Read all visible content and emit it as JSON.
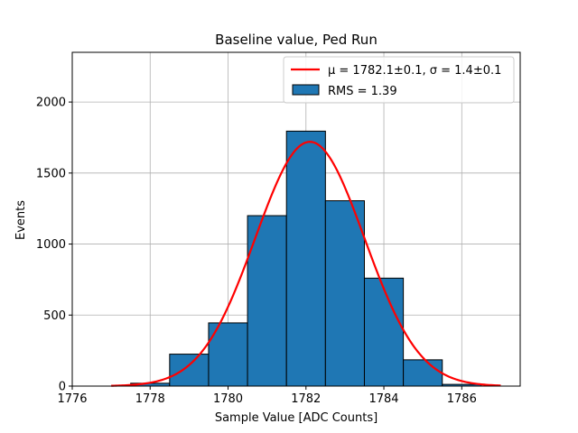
{
  "chart_data": {
    "type": "bar",
    "title": "Baseline value, Ped Run",
    "xlabel": "Sample Value [ADC Counts]",
    "ylabel": "Events",
    "xlim": [
      1776,
      1787.5
    ],
    "ylim": [
      0,
      2350
    ],
    "x_ticks": [
      1776,
      1778,
      1780,
      1782,
      1784,
      1786
    ],
    "y_ticks": [
      0,
      500,
      1000,
      1500,
      2000
    ],
    "grid": true,
    "legend_position": "top-right",
    "histogram": {
      "name": "RMS = 1.39",
      "color": "#1f77b4",
      "edge_color": "#000000",
      "bins": [
        {
          "left": 1776.5,
          "right": 1777.5,
          "count": 0
        },
        {
          "left": 1777.5,
          "right": 1778.5,
          "count": 20
        },
        {
          "left": 1778.5,
          "right": 1779.5,
          "count": 225
        },
        {
          "left": 1779.5,
          "right": 1780.5,
          "count": 445
        },
        {
          "left": 1780.5,
          "right": 1781.5,
          "count": 1200
        },
        {
          "left": 1781.5,
          "right": 1782.5,
          "count": 1795
        },
        {
          "left": 1782.5,
          "right": 1783.5,
          "count": 1305
        },
        {
          "left": 1783.5,
          "right": 1784.5,
          "count": 760
        },
        {
          "left": 1784.5,
          "right": 1785.5,
          "count": 185
        },
        {
          "left": 1785.5,
          "right": 1786.5,
          "count": 12
        }
      ]
    },
    "fit": {
      "name": "μ = 1782.1±0.1, σ = 1.4±0.1",
      "color": "#ff0000",
      "type": "gaussian",
      "mu": 1782.1,
      "sigma": 1.4,
      "amplitude": 1720,
      "x_range": [
        1777,
        1787
      ]
    }
  }
}
